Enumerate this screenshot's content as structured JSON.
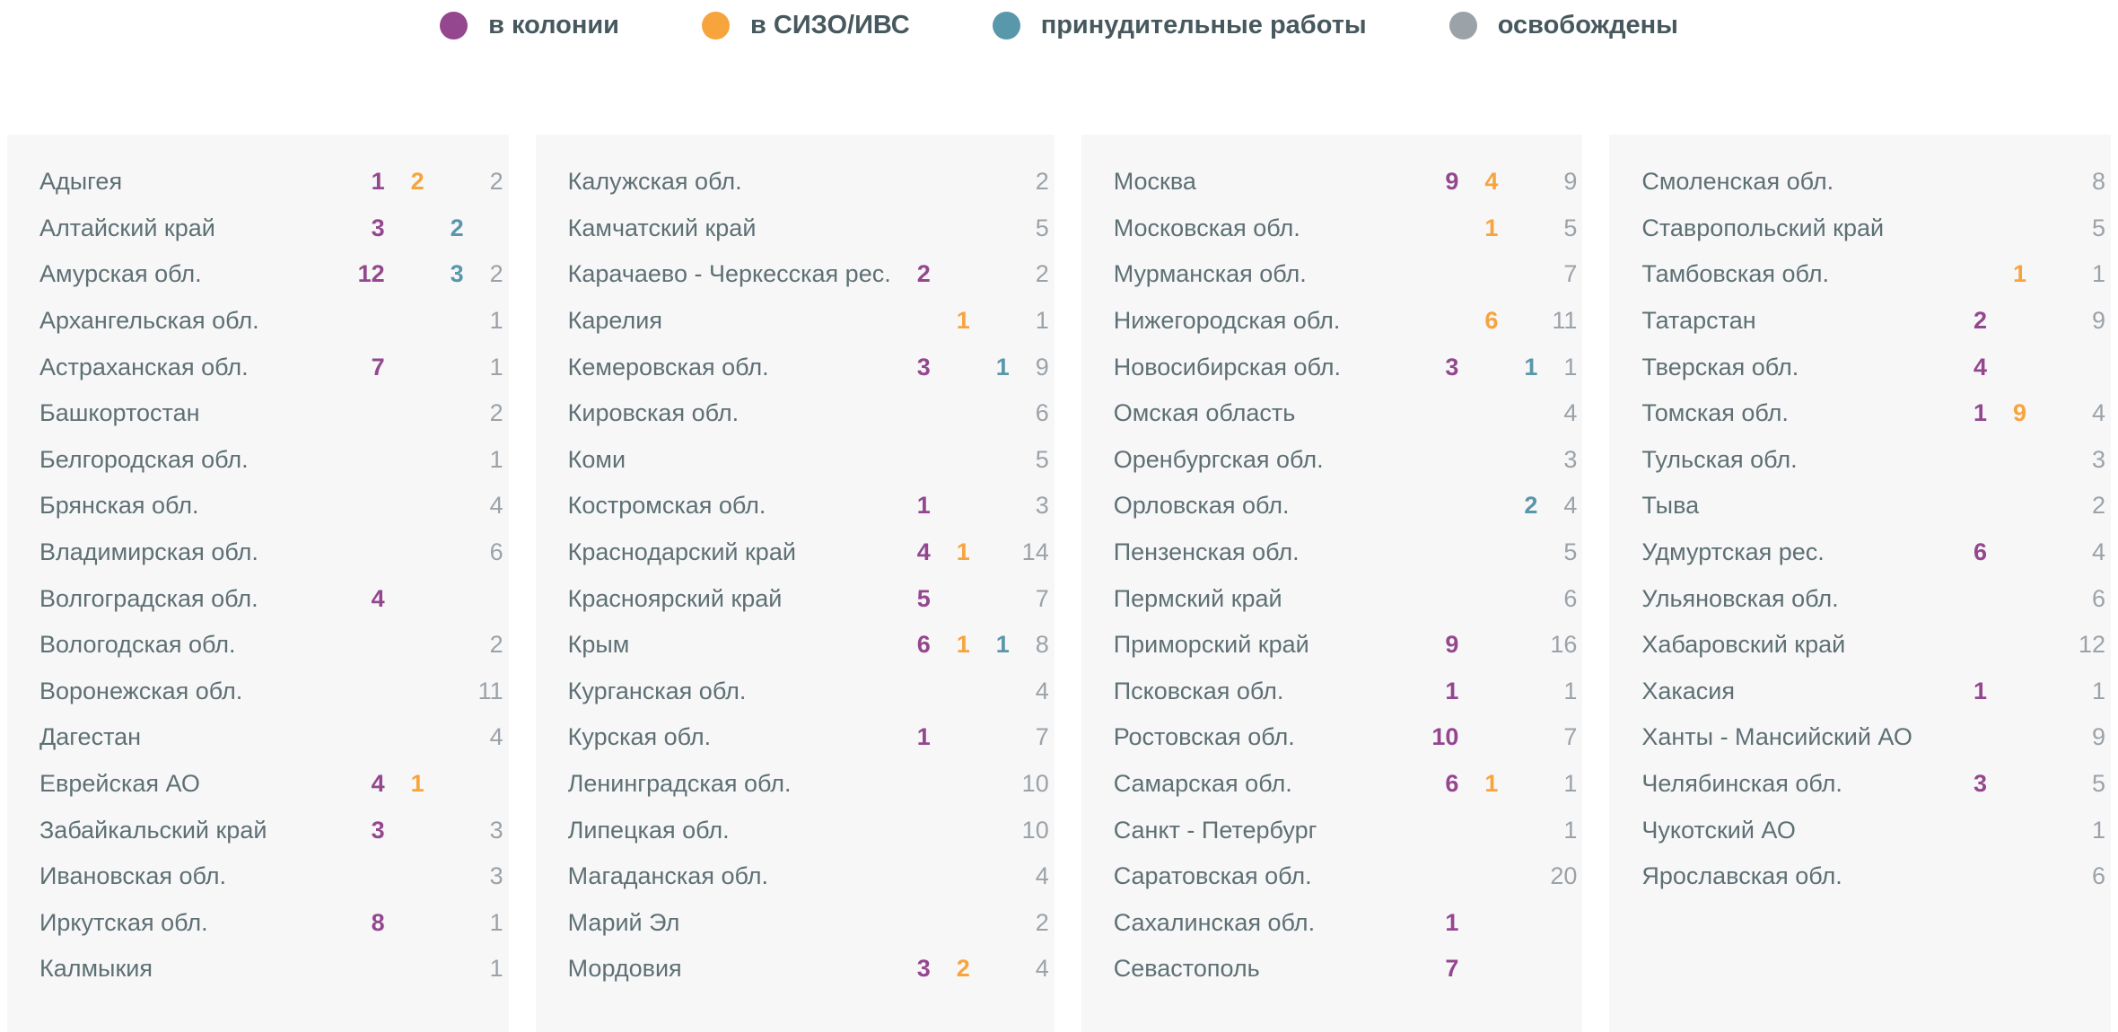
{
  "legend": {
    "items": [
      {
        "key": "colony",
        "label": "в колонии",
        "color": "#94478f"
      },
      {
        "key": "sizo",
        "label": "в СИЗО/ИВС",
        "color": "#f8a43d"
      },
      {
        "key": "forced_labor",
        "label": "принудительные работы",
        "color": "#5997aa"
      },
      {
        "key": "released",
        "label": "освобождены",
        "color": "#9ba2a8"
      }
    ]
  },
  "colors": {
    "colony": "#94478f",
    "sizo": "#f8a43d",
    "forced_labor": "#5997aa",
    "released": "#9ba2a8",
    "region_text": "#5e7074",
    "legend_text": "#47595e",
    "panel_bg": "#f7f7f8",
    "page_bg": "#ffffff"
  },
  "chart_data": {
    "type": "table",
    "title": "",
    "legend_position": "top-center",
    "columns": [
      "region",
      "в колонии",
      "в СИЗО/ИВС",
      "принудительные работы",
      "освобождены"
    ],
    "panels": [
      [
        [
          "Адыгея",
          1,
          2,
          null,
          2
        ],
        [
          "Алтайский край",
          3,
          null,
          2,
          null
        ],
        [
          "Амурская обл.",
          12,
          null,
          3,
          2
        ],
        [
          "Архангельская обл.",
          null,
          null,
          null,
          1
        ],
        [
          "Астраханская обл.",
          7,
          null,
          null,
          1
        ],
        [
          "Башкортостан",
          null,
          null,
          null,
          2
        ],
        [
          "Белгородская обл.",
          null,
          null,
          null,
          1
        ],
        [
          "Брянская обл.",
          null,
          null,
          null,
          4
        ],
        [
          "Владимирская обл.",
          null,
          null,
          null,
          6
        ],
        [
          "Волгоградская обл.",
          4,
          null,
          null,
          null
        ],
        [
          "Вологодская обл.",
          null,
          null,
          null,
          2
        ],
        [
          "Воронежская обл.",
          null,
          null,
          null,
          11
        ],
        [
          "Дагестан",
          null,
          null,
          null,
          4
        ],
        [
          "Еврейская АО",
          4,
          1,
          null,
          null
        ],
        [
          "Забайкальский край",
          3,
          null,
          null,
          3
        ],
        [
          "Ивановская обл.",
          null,
          null,
          null,
          3
        ],
        [
          "Иркутская обл.",
          8,
          null,
          null,
          1
        ],
        [
          "Калмыкия",
          null,
          null,
          null,
          1
        ]
      ],
      [
        [
          "Калужская обл.",
          null,
          null,
          null,
          2
        ],
        [
          "Камчатский край",
          null,
          null,
          null,
          5
        ],
        [
          "Карачаево - Черкесская рес.",
          2,
          null,
          null,
          2
        ],
        [
          "Карелия",
          null,
          1,
          null,
          1
        ],
        [
          "Кемеровская обл.",
          3,
          null,
          1,
          9
        ],
        [
          "Кировская обл.",
          null,
          null,
          null,
          6
        ],
        [
          "Коми",
          null,
          null,
          null,
          5
        ],
        [
          "Костромская обл.",
          1,
          null,
          null,
          3
        ],
        [
          "Краснодарский край",
          4,
          1,
          null,
          14
        ],
        [
          "Красноярский край",
          5,
          null,
          null,
          7
        ],
        [
          "Крым",
          6,
          1,
          1,
          8
        ],
        [
          "Курганская обл.",
          null,
          null,
          null,
          4
        ],
        [
          "Курская обл.",
          1,
          null,
          null,
          7
        ],
        [
          "Ленинградская обл.",
          null,
          null,
          null,
          10
        ],
        [
          "Липецкая обл.",
          null,
          null,
          null,
          10
        ],
        [
          "Магаданская обл.",
          null,
          null,
          null,
          4
        ],
        [
          "Марий Эл",
          null,
          null,
          null,
          2
        ],
        [
          "Мордовия",
          3,
          2,
          null,
          4
        ]
      ],
      [
        [
          "Москва",
          9,
          4,
          null,
          9
        ],
        [
          "Московская обл.",
          null,
          1,
          null,
          5
        ],
        [
          "Мурманская обл.",
          null,
          null,
          null,
          7
        ],
        [
          "Нижегородская обл.",
          null,
          6,
          null,
          11
        ],
        [
          "Новосибирская обл.",
          3,
          null,
          1,
          1
        ],
        [
          "Омская область",
          null,
          null,
          null,
          4
        ],
        [
          "Оренбургская обл.",
          null,
          null,
          null,
          3
        ],
        [
          "Орловская обл.",
          null,
          null,
          2,
          4
        ],
        [
          "Пензенская обл.",
          null,
          null,
          null,
          5
        ],
        [
          "Пермский край",
          null,
          null,
          null,
          6
        ],
        [
          "Приморский край",
          9,
          null,
          null,
          16
        ],
        [
          "Псковская обл.",
          1,
          null,
          null,
          1
        ],
        [
          "Ростовская обл.",
          10,
          null,
          null,
          7
        ],
        [
          "Самарская обл.",
          6,
          1,
          null,
          1
        ],
        [
          "Санкт - Петербург",
          null,
          null,
          null,
          1
        ],
        [
          "Саратовская обл.",
          null,
          null,
          null,
          20
        ],
        [
          "Сахалинская обл.",
          1,
          null,
          null,
          null
        ],
        [
          "Севастополь",
          7,
          null,
          null,
          null
        ]
      ],
      [
        [
          "Смоленская обл.",
          null,
          null,
          null,
          8
        ],
        [
          "Ставропольский край",
          null,
          null,
          null,
          5
        ],
        [
          "Тамбовская обл.",
          null,
          1,
          null,
          1
        ],
        [
          "Татарстан",
          2,
          null,
          null,
          9
        ],
        [
          "Тверская обл.",
          4,
          null,
          null,
          null
        ],
        [
          "Томская обл.",
          1,
          9,
          null,
          4
        ],
        [
          "Тульская обл.",
          null,
          null,
          null,
          3
        ],
        [
          "Тыва",
          null,
          null,
          null,
          2
        ],
        [
          "Удмуртская рес.",
          6,
          null,
          null,
          4
        ],
        [
          "Ульяновская обл.",
          null,
          null,
          null,
          6
        ],
        [
          "Хабаровский край",
          null,
          null,
          null,
          12
        ],
        [
          "Хакасия",
          1,
          null,
          null,
          1
        ],
        [
          "Ханты - Мансийский АО",
          null,
          null,
          null,
          9
        ],
        [
          "Челябинская обл.",
          3,
          null,
          null,
          5
        ],
        [
          "Чукотский АО",
          null,
          null,
          null,
          1
        ],
        [
          "Ярославская обл.",
          null,
          null,
          null,
          6
        ]
      ]
    ]
  }
}
